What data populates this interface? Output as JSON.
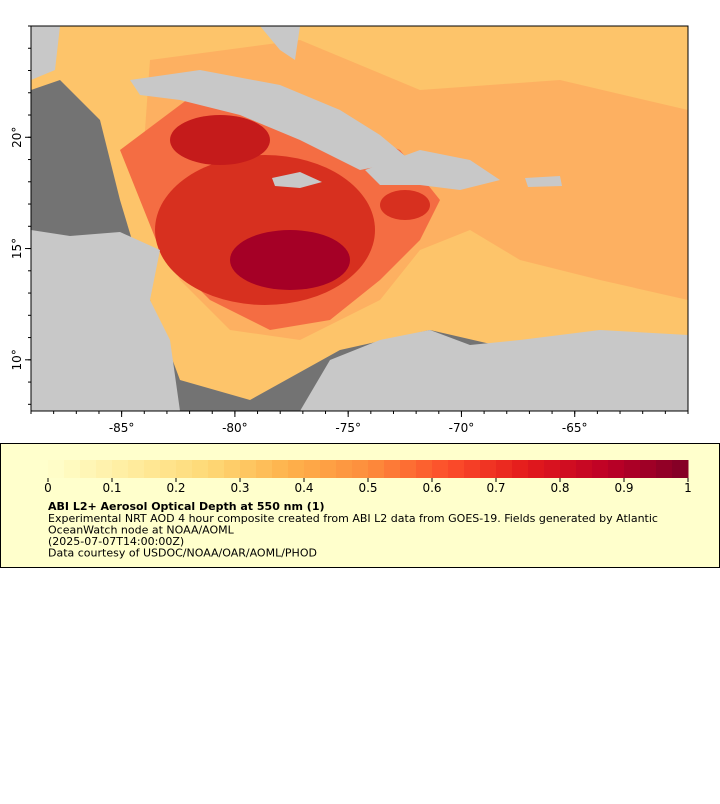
{
  "map": {
    "xlim": [
      -89,
      -60
    ],
    "ylim": [
      7.7,
      25
    ],
    "xticks": [
      {
        "value": -85,
        "label": "-85°"
      },
      {
        "value": -80,
        "label": "-80°"
      },
      {
        "value": -75,
        "label": "-75°"
      },
      {
        "value": -70,
        "label": "-70°"
      },
      {
        "value": -65,
        "label": "-65°"
      }
    ],
    "yticks": [
      {
        "value": 10,
        "label": "10°"
      },
      {
        "value": 15,
        "label": "15°"
      },
      {
        "value": 20,
        "label": "20°"
      }
    ]
  },
  "legend": {
    "title": "ABI L2+ Aerosol Optical Depth at 550 nm (1)",
    "lines": [
      "Experimental NRT AOD 4 hour composite created from ABI L2 data from GOES-19. Fields generated by Atlantic",
      "OceanWatch node at NOAA/AOML",
      "(2025-07-07T14:00:00Z)",
      "Data courtesy of USDOC/NOAA/OAR/AOML/PHOD"
    ],
    "colorbar": {
      "range": [
        0,
        1
      ],
      "ticks": [
        0,
        0.1,
        0.2,
        0.3,
        0.4,
        0.5,
        0.6,
        0.7,
        0.8,
        0.9,
        1
      ],
      "colors": [
        "#ffffcc",
        "#ffeda0",
        "#fed976",
        "#feb24c",
        "#fd8d3c",
        "#fc4e2a",
        "#e31a1c",
        "#bd0026",
        "#800026"
      ]
    }
  }
}
